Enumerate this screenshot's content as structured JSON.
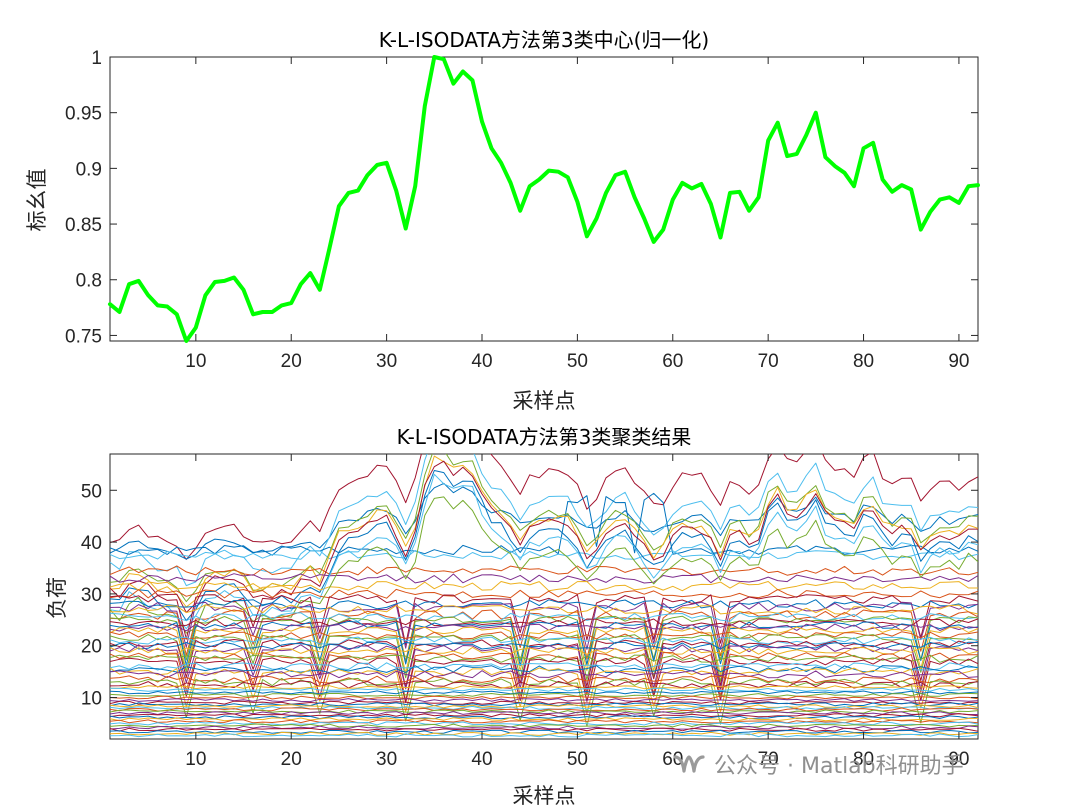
{
  "chart_data": [
    {
      "type": "line",
      "title": "K-L-ISODATA方法第3类中心(归一化)",
      "xlabel": "采样点",
      "ylabel": "标幺值",
      "xlim": [
        1,
        92
      ],
      "ylim": [
        0.745,
        1
      ],
      "xticks": [
        10,
        20,
        30,
        40,
        50,
        60,
        70,
        80,
        90
      ],
      "yticks": [
        0.75,
        0.8,
        0.85,
        0.9,
        0.95,
        1
      ],
      "ytick_labels": [
        "0.75",
        "0.8",
        "0.85",
        "0.9",
        "0.95",
        "1"
      ],
      "grid": false,
      "series": [
        {
          "color": "#00ff00",
          "x": [
            1,
            2,
            3,
            4,
            5,
            6,
            7,
            8,
            9,
            10,
            11,
            12,
            13,
            14,
            15,
            16,
            17,
            18,
            19,
            20,
            21,
            22,
            23,
            24,
            25,
            26,
            27,
            28,
            29,
            30,
            31,
            32,
            33,
            34,
            35,
            36,
            37,
            38,
            39,
            40,
            41,
            42,
            43,
            44,
            45,
            46,
            47,
            48,
            49,
            50,
            51,
            52,
            53,
            54,
            55,
            56,
            57,
            58,
            59,
            60,
            61,
            62,
            63,
            64,
            65,
            66,
            67,
            68,
            69,
            70,
            71,
            72,
            73,
            74,
            75,
            76,
            77,
            78,
            79,
            80,
            81,
            82,
            83,
            84,
            85,
            86,
            87,
            88,
            89,
            90,
            91,
            92
          ],
          "y": [
            0.778,
            0.771,
            0.796,
            0.799,
            0.786,
            0.777,
            0.776,
            0.769,
            0.745,
            0.757,
            0.786,
            0.798,
            0.799,
            0.802,
            0.791,
            0.769,
            0.771,
            0.771,
            0.777,
            0.779,
            0.796,
            0.806,
            0.791,
            0.828,
            0.866,
            0.878,
            0.88,
            0.894,
            0.903,
            0.905,
            0.88,
            0.846,
            0.884,
            0.956,
            1.0,
            0.998,
            0.976,
            0.987,
            0.979,
            0.942,
            0.918,
            0.905,
            0.887,
            0.862,
            0.884,
            0.89,
            0.898,
            0.897,
            0.892,
            0.87,
            0.839,
            0.855,
            0.878,
            0.894,
            0.897,
            0.874,
            0.855,
            0.834,
            0.845,
            0.872,
            0.887,
            0.882,
            0.886,
            0.868,
            0.838,
            0.878,
            0.879,
            0.862,
            0.874,
            0.925,
            0.941,
            0.911,
            0.913,
            0.93,
            0.95,
            0.91,
            0.902,
            0.896,
            0.884,
            0.918,
            0.923,
            0.89,
            0.879,
            0.885,
            0.881,
            0.845,
            0.861,
            0.872,
            0.874,
            0.869,
            0.884,
            0.885
          ]
        }
      ]
    },
    {
      "type": "line",
      "title": "K-L-ISODATA方法第3类聚类结果",
      "xlabel": "采样点",
      "ylabel": "负荷",
      "xlim": [
        1,
        92
      ],
      "ylim": [
        2,
        57
      ],
      "xticks": [
        10,
        20,
        30,
        40,
        50,
        60,
        70,
        80,
        90
      ],
      "yticks": [
        10,
        20,
        30,
        40,
        50
      ],
      "grid": false,
      "n_points": 92,
      "palette": [
        "#0072bd",
        "#d95319",
        "#edb120",
        "#7e2f8e",
        "#77ac30",
        "#4dbeee",
        "#a2142f"
      ],
      "series": [
        {
          "base": 44.0,
          "shape": 1,
          "color": "#a2142f"
        },
        {
          "base": 40.5,
          "shape": 3,
          "color": "#0072bd"
        },
        {
          "base": 39.0,
          "shape": 1,
          "color": "#4dbeee"
        },
        {
          "base": 38.5,
          "shape": 2,
          "color": "#0072bd"
        },
        {
          "base": 37.5,
          "shape": 0,
          "color": "#4dbeee"
        },
        {
          "base": 36.0,
          "shape": 1,
          "color": "#77ac30"
        },
        {
          "base": 35.0,
          "shape": 1,
          "color": "#edb120"
        },
        {
          "base": 34.5,
          "shape": 0,
          "color": "#d95319"
        },
        {
          "base": 34.0,
          "shape": 1,
          "color": "#a2142f"
        },
        {
          "base": 33.0,
          "shape": 0,
          "color": "#7e2f8e"
        },
        {
          "base": 32.5,
          "shape": 1,
          "color": "#0072bd"
        },
        {
          "base": 31.5,
          "shape": 0,
          "color": "#edb120"
        },
        {
          "base": 31.0,
          "shape": 1,
          "color": "#4dbeee"
        },
        {
          "base": 30.0,
          "shape": 0,
          "color": "#d95319"
        },
        {
          "base": 29.5,
          "shape": 1,
          "color": "#77ac30"
        },
        {
          "base": 29.0,
          "shape": 4,
          "color": "#a2142f"
        },
        {
          "base": 28.0,
          "shape": 0,
          "color": "#0072bd"
        },
        {
          "base": 27.5,
          "shape": 4,
          "color": "#7e2f8e"
        },
        {
          "base": 27.0,
          "shape": 0,
          "color": "#edb120"
        },
        {
          "base": 26.0,
          "shape": 4,
          "color": "#d95319"
        },
        {
          "base": 25.5,
          "shape": 0,
          "color": "#4dbeee"
        },
        {
          "base": 25.0,
          "shape": 4,
          "color": "#77ac30"
        },
        {
          "base": 24.5,
          "shape": 0,
          "color": "#a2142f"
        },
        {
          "base": 24.0,
          "shape": 4,
          "color": "#0072bd"
        },
        {
          "base": 23.5,
          "shape": 0,
          "color": "#7e2f8e"
        },
        {
          "base": 23.0,
          "shape": 4,
          "color": "#edb120"
        },
        {
          "base": 22.0,
          "shape": 0,
          "color": "#d95319"
        },
        {
          "base": 21.5,
          "shape": 4,
          "color": "#77ac30"
        },
        {
          "base": 21.0,
          "shape": 0,
          "color": "#4dbeee"
        },
        {
          "base": 20.5,
          "shape": 4,
          "color": "#a2142f"
        },
        {
          "base": 20.0,
          "shape": 0,
          "color": "#0072bd"
        },
        {
          "base": 19.5,
          "shape": 4,
          "color": "#7e2f8e"
        },
        {
          "base": 19.0,
          "shape": 0,
          "color": "#edb120"
        },
        {
          "base": 18.0,
          "shape": 4,
          "color": "#d95319"
        },
        {
          "base": 17.5,
          "shape": 0,
          "color": "#77ac30"
        },
        {
          "base": 17.0,
          "shape": 4,
          "color": "#a2142f"
        },
        {
          "base": 16.0,
          "shape": 0,
          "color": "#4dbeee"
        },
        {
          "base": 15.5,
          "shape": 0,
          "color": "#0072bd"
        },
        {
          "base": 15.0,
          "shape": 4,
          "color": "#edb120"
        },
        {
          "base": 14.5,
          "shape": 0,
          "color": "#7e2f8e"
        },
        {
          "base": 13.5,
          "shape": 0,
          "color": "#d95319"
        },
        {
          "base": 13.0,
          "shape": 4,
          "color": "#77ac30"
        },
        {
          "base": 12.5,
          "shape": 0,
          "color": "#a2142f"
        },
        {
          "base": 12.0,
          "shape": 0,
          "color": "#edb120"
        },
        {
          "base": 11.5,
          "shape": 0,
          "color": "#4dbeee"
        },
        {
          "base": 11.0,
          "shape": 0,
          "color": "#0072bd"
        },
        {
          "base": 10.5,
          "shape": 0,
          "color": "#77ac30"
        },
        {
          "base": 10.0,
          "shape": 0,
          "color": "#d95319"
        },
        {
          "base": 9.5,
          "shape": 0,
          "color": "#7e2f8e"
        },
        {
          "base": 9.0,
          "shape": 0,
          "color": "#a2142f"
        },
        {
          "base": 8.7,
          "shape": 0,
          "color": "#0072bd"
        },
        {
          "base": 8.3,
          "shape": 0,
          "color": "#edb120"
        },
        {
          "base": 8.0,
          "shape": 0,
          "color": "#4dbeee"
        },
        {
          "base": 7.7,
          "shape": 0,
          "color": "#d95319"
        },
        {
          "base": 7.3,
          "shape": 0,
          "color": "#77ac30"
        },
        {
          "base": 7.0,
          "shape": 0,
          "color": "#7e2f8e"
        },
        {
          "base": 6.6,
          "shape": 0,
          "color": "#a2142f"
        },
        {
          "base": 6.2,
          "shape": 0,
          "color": "#0072bd"
        },
        {
          "base": 5.8,
          "shape": 0,
          "color": "#edb120"
        },
        {
          "base": 5.4,
          "shape": 0,
          "color": "#d95319"
        },
        {
          "base": 5.0,
          "shape": 0,
          "color": "#4dbeee"
        },
        {
          "base": 4.6,
          "shape": 0,
          "color": "#77ac30"
        },
        {
          "base": 4.2,
          "shape": 0,
          "color": "#7e2f8e"
        },
        {
          "base": 3.8,
          "shape": 0,
          "color": "#a2142f"
        },
        {
          "base": 3.4,
          "shape": 0,
          "color": "#0072bd"
        },
        {
          "base": 3.0,
          "shape": 0,
          "color": "#edb120"
        },
        {
          "base": 2.7,
          "shape": 0,
          "color": "#4dbeee"
        }
      ],
      "profiles": [
        [
          0,
          0,
          0,
          0,
          0,
          0,
          0,
          0,
          0,
          0,
          0,
          0,
          0,
          0,
          0,
          0,
          0,
          0,
          0,
          0,
          0,
          0,
          0,
          0,
          0,
          0,
          0,
          0,
          0,
          0,
          0,
          0,
          0,
          0,
          0,
          0,
          0,
          0,
          0,
          0,
          0,
          0,
          0,
          0,
          0,
          0,
          0,
          0,
          0,
          0,
          0,
          0,
          0,
          0,
          0,
          0,
          0,
          0,
          0,
          0,
          0,
          0,
          0,
          0,
          0,
          0,
          0,
          0,
          0,
          0,
          0,
          0,
          0,
          0,
          0,
          0,
          0,
          0,
          0,
          0,
          0,
          0,
          0,
          0,
          0,
          0,
          0,
          0,
          0,
          0,
          0,
          0
        ],
        [
          -3.6,
          -4.3,
          -1.4,
          -1.0,
          -2.6,
          -3.7,
          -3.8,
          -4.6,
          -7.3,
          -6.0,
          -2.7,
          -1.3,
          -1.2,
          -0.9,
          -2.1,
          -4.6,
          -4.4,
          -4.4,
          -3.7,
          -3.5,
          -1.6,
          -0.5,
          -2.2,
          2.0,
          6.3,
          7.6,
          7.8,
          9.4,
          10.4,
          10.6,
          7.8,
          4.0,
          8.3,
          16.4,
          21.3,
          21.1,
          18.6,
          19.8,
          18.9,
          14.8,
          12.1,
          10.6,
          8.6,
          5.8,
          8.3,
          9.0,
          9.9,
          9.7,
          9.2,
          6.7,
          3.2,
          5.0,
          7.6,
          9.4,
          9.8,
          7.2,
          5.0,
          2.7,
          3.9,
          7.0,
          8.6,
          8.1,
          8.5,
          6.5,
          3.1,
          7.6,
          7.7,
          5.8,
          7.2,
          12.9,
          14.7,
          11.3,
          11.5,
          13.4,
          15.7,
          11.2,
          10.3,
          9.6,
          8.3,
          12.1,
          12.7,
          9.0,
          7.7,
          8.4,
          8.0,
          3.9,
          5.7,
          7.0,
          7.2,
          6.6,
          8.3,
          8.4
        ],
        [
          0,
          0,
          0,
          0,
          0,
          0,
          0,
          0,
          0,
          0,
          0,
          0,
          0,
          0,
          0,
          0,
          0,
          0,
          0,
          0,
          0,
          0,
          0,
          0,
          0,
          0,
          0,
          0,
          0,
          0,
          0,
          0,
          0,
          0,
          0,
          0,
          0,
          0,
          0,
          0,
          0,
          0,
          0,
          0,
          0,
          0,
          0,
          0,
          10,
          10,
          10,
          0,
          10,
          10,
          10,
          0,
          10,
          10,
          10,
          0,
          0,
          0,
          0,
          0,
          0,
          0,
          0,
          0,
          0,
          0,
          0,
          0,
          0,
          0,
          0,
          0,
          0,
          0,
          0,
          0,
          0,
          0,
          0,
          0,
          0,
          0,
          0,
          0,
          0,
          0,
          0,
          0
        ],
        [
          -1.8,
          -2.1,
          -0.7,
          -0.5,
          -1.3,
          -1.8,
          -1.9,
          -2.3,
          -3.7,
          -3.0,
          -1.3,
          -0.7,
          -0.6,
          -0.5,
          -1.1,
          -2.3,
          -2.2,
          -2.2,
          -1.9,
          -1.8,
          -0.8,
          -0.3,
          -1.1,
          1.0,
          3.2,
          3.8,
          3.9,
          4.7,
          5.2,
          5.3,
          3.9,
          2.0,
          4.1,
          8.2,
          10.7,
          10.6,
          9.3,
          9.9,
          9.5,
          7.4,
          6.0,
          5.3,
          4.3,
          2.9,
          4.1,
          4.5,
          5.0,
          4.9,
          4.6,
          3.3,
          1.6,
          2.5,
          3.8,
          4.7,
          4.9,
          3.6,
          2.5,
          1.3,
          2.0,
          3.5,
          4.3,
          4.0,
          4.2,
          3.2,
          1.5,
          3.8,
          3.8,
          2.9,
          3.6,
          6.5,
          7.4,
          5.7,
          5.8,
          6.7,
          7.8,
          5.6,
          5.1,
          4.8,
          4.1,
          6.0,
          6.3,
          4.5,
          3.9,
          4.2,
          4.0,
          1.9,
          2.8,
          3.5,
          3.6,
          3.3,
          4.1,
          4.2
        ],
        [
          0,
          0,
          0,
          0,
          0,
          0,
          0,
          0,
          -8,
          0,
          0,
          0,
          0,
          0,
          0,
          -6,
          0,
          0,
          0,
          0,
          0,
          0,
          -7,
          0,
          0,
          0,
          0,
          0,
          0,
          0,
          0,
          -9,
          0,
          0,
          0,
          0,
          0,
          0,
          0,
          0,
          0,
          0,
          0,
          -8,
          0,
          0,
          0,
          0,
          0,
          0,
          -9,
          0,
          0,
          0,
          0,
          0,
          0,
          -8,
          0,
          0,
          0,
          0,
          0,
          0,
          -9,
          0,
          0,
          0,
          0,
          0,
          0,
          0,
          0,
          0,
          0,
          0,
          0,
          0,
          0,
          0,
          0,
          0,
          0,
          0,
          0,
          -8,
          0,
          0,
          0,
          0,
          0,
          0
        ]
      ]
    }
  ],
  "watermark": {
    "icon": "wechat-channel-icon",
    "text": "公众号 · Matlab科研助手"
  }
}
